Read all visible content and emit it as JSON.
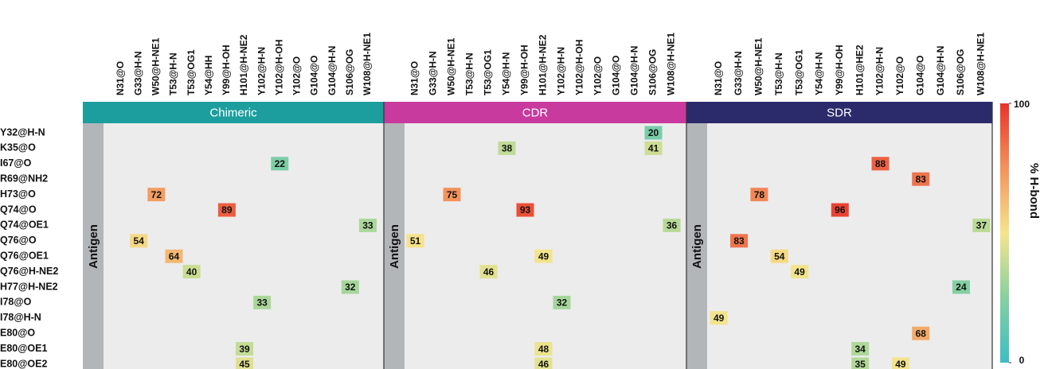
{
  "chart_data": {
    "type": "heatmap",
    "rows": [
      "Y32@H-N",
      "K35@O",
      "I67@O",
      "R69@NH2",
      "H73@O",
      "Q74@O",
      "Q74@OE1",
      "Q76@O",
      "Q76@OE1",
      "Q76@H-NE2",
      "H77@H-NE2",
      "I78@O",
      "I78@H-N",
      "E80@O",
      "E80@OE1",
      "E80@OE2"
    ],
    "row_group_label": "Antigen",
    "colorbar": {
      "label": "% H-bond",
      "lim": [
        0,
        100
      ],
      "ticks": [
        0,
        100
      ]
    },
    "colorscale": [
      [
        0,
        "#3dbdc6"
      ],
      [
        25,
        "#86d0a0"
      ],
      [
        50,
        "#f5e58c"
      ],
      [
        75,
        "#f2935c"
      ],
      [
        100,
        "#e8332a"
      ]
    ],
    "panels": [
      {
        "title": "Chimeric",
        "color": "#1c9e9e",
        "columns": [
          "N31@O",
          "G33@H-N",
          "W50@H-NE1",
          "T53@H-N",
          "T53@OG1",
          "Y54@HH",
          "Y99@H-OH",
          "H101@H-NE2",
          "Y102@H-N",
          "Y102@H-OH",
          "Y102@O",
          "G104@O",
          "G104@H-N",
          "S106@OG",
          "W108@H-NE1"
        ],
        "values": [
          [
            null,
            null,
            null,
            null,
            null,
            null,
            null,
            null,
            null,
            null,
            null,
            null,
            null,
            null,
            null
          ],
          [
            null,
            null,
            null,
            null,
            null,
            null,
            null,
            null,
            null,
            null,
            null,
            null,
            null,
            null,
            null
          ],
          [
            null,
            null,
            null,
            null,
            null,
            null,
            null,
            null,
            null,
            22,
            null,
            null,
            null,
            null,
            null
          ],
          [
            null,
            null,
            null,
            null,
            null,
            null,
            null,
            null,
            null,
            null,
            null,
            null,
            null,
            null,
            null
          ],
          [
            null,
            null,
            72,
            null,
            null,
            null,
            null,
            null,
            null,
            null,
            null,
            null,
            null,
            null,
            null
          ],
          [
            null,
            null,
            null,
            null,
            null,
            null,
            89,
            null,
            null,
            null,
            null,
            null,
            null,
            null,
            null
          ],
          [
            null,
            null,
            null,
            null,
            null,
            null,
            null,
            null,
            null,
            null,
            null,
            null,
            null,
            null,
            33
          ],
          [
            null,
            54,
            null,
            null,
            null,
            null,
            null,
            null,
            null,
            null,
            null,
            null,
            null,
            null,
            null
          ],
          [
            null,
            null,
            null,
            64,
            null,
            null,
            null,
            null,
            null,
            null,
            null,
            null,
            null,
            null,
            null
          ],
          [
            null,
            null,
            null,
            null,
            40,
            null,
            null,
            null,
            null,
            null,
            null,
            null,
            null,
            null,
            null
          ],
          [
            null,
            null,
            null,
            null,
            null,
            null,
            null,
            null,
            null,
            null,
            null,
            null,
            null,
            32,
            null
          ],
          [
            null,
            null,
            null,
            null,
            null,
            null,
            null,
            null,
            33,
            null,
            null,
            null,
            null,
            null,
            null
          ],
          [
            null,
            null,
            null,
            null,
            null,
            null,
            null,
            null,
            null,
            null,
            null,
            null,
            null,
            null,
            null
          ],
          [
            null,
            null,
            null,
            null,
            null,
            null,
            null,
            null,
            null,
            null,
            null,
            null,
            null,
            null,
            null
          ],
          [
            null,
            null,
            null,
            null,
            null,
            null,
            null,
            39,
            null,
            null,
            null,
            null,
            null,
            null,
            null
          ],
          [
            null,
            null,
            null,
            null,
            null,
            null,
            null,
            45,
            null,
            null,
            null,
            null,
            null,
            null,
            null
          ]
        ]
      },
      {
        "title": "CDR",
        "color": "#c93a9e",
        "columns": [
          "N31@O",
          "G33@H-N",
          "W50@H-NE1",
          "T53@H-N",
          "T53@OG1",
          "Y54@H-N",
          "Y99@H-OH",
          "H101@H-NE2",
          "Y102@H-N",
          "Y102@H-OH",
          "Y102@O",
          "G104@O",
          "G104@H-N",
          "S106@OG",
          "W108@H-NE1"
        ],
        "values": [
          [
            null,
            null,
            null,
            null,
            null,
            null,
            null,
            null,
            null,
            null,
            null,
            null,
            null,
            20,
            null
          ],
          [
            null,
            null,
            null,
            null,
            null,
            38,
            null,
            null,
            null,
            null,
            null,
            null,
            null,
            41,
            null
          ],
          [
            null,
            null,
            null,
            null,
            null,
            null,
            null,
            null,
            null,
            null,
            null,
            null,
            null,
            null,
            null
          ],
          [
            null,
            null,
            null,
            null,
            null,
            null,
            null,
            null,
            null,
            null,
            null,
            null,
            null,
            null,
            null
          ],
          [
            null,
            null,
            75,
            null,
            null,
            null,
            null,
            null,
            null,
            null,
            null,
            null,
            null,
            null,
            null
          ],
          [
            null,
            null,
            null,
            null,
            null,
            null,
            93,
            null,
            null,
            null,
            null,
            null,
            null,
            null,
            null
          ],
          [
            null,
            null,
            null,
            null,
            null,
            null,
            null,
            null,
            null,
            null,
            null,
            null,
            null,
            null,
            36
          ],
          [
            51,
            null,
            null,
            null,
            null,
            null,
            null,
            null,
            null,
            null,
            null,
            null,
            null,
            null,
            null
          ],
          [
            null,
            null,
            null,
            null,
            null,
            null,
            null,
            49,
            null,
            null,
            null,
            null,
            null,
            null,
            null
          ],
          [
            null,
            null,
            null,
            null,
            46,
            null,
            null,
            null,
            null,
            null,
            null,
            null,
            null,
            null,
            null
          ],
          [
            null,
            null,
            null,
            null,
            null,
            null,
            null,
            null,
            null,
            null,
            null,
            null,
            null,
            null,
            null
          ],
          [
            null,
            null,
            null,
            null,
            null,
            null,
            null,
            null,
            32,
            null,
            null,
            null,
            null,
            null,
            null
          ],
          [
            null,
            null,
            null,
            null,
            null,
            null,
            null,
            null,
            null,
            null,
            null,
            null,
            null,
            null,
            null
          ],
          [
            null,
            null,
            null,
            null,
            null,
            null,
            null,
            null,
            null,
            null,
            null,
            null,
            null,
            null,
            null
          ],
          [
            null,
            null,
            null,
            null,
            null,
            null,
            null,
            48,
            null,
            null,
            null,
            null,
            null,
            null,
            null
          ],
          [
            null,
            null,
            null,
            null,
            null,
            null,
            null,
            46,
            null,
            null,
            null,
            null,
            null,
            null,
            null
          ]
        ]
      },
      {
        "title": "SDR",
        "color": "#2b2a6b",
        "columns": [
          "N31@O",
          "G33@H-N",
          "W50@H-NE1",
          "T53@H-N",
          "T53@OG1",
          "Y54@H-N",
          "Y99@H-OH",
          "H101@HE2",
          "Y102@H-N",
          "Y102@O",
          "G104@O",
          "G104@H-N",
          "S106@OG",
          "W108@H-NE1"
        ],
        "values": [
          [
            null,
            null,
            null,
            null,
            null,
            null,
            null,
            null,
            null,
            null,
            null,
            null,
            null,
            null
          ],
          [
            null,
            null,
            null,
            null,
            null,
            null,
            null,
            null,
            null,
            null,
            null,
            null,
            null,
            null
          ],
          [
            null,
            null,
            null,
            null,
            null,
            null,
            null,
            null,
            88,
            null,
            null,
            null,
            null,
            null
          ],
          [
            null,
            null,
            null,
            null,
            null,
            null,
            null,
            null,
            null,
            null,
            83,
            null,
            null,
            null
          ],
          [
            null,
            null,
            78,
            null,
            null,
            null,
            null,
            null,
            null,
            null,
            null,
            null,
            null,
            null
          ],
          [
            null,
            null,
            null,
            null,
            null,
            null,
            96,
            null,
            null,
            null,
            null,
            null,
            null,
            null
          ],
          [
            null,
            null,
            null,
            null,
            null,
            null,
            null,
            null,
            null,
            null,
            null,
            null,
            null,
            37
          ],
          [
            null,
            83,
            null,
            null,
            null,
            null,
            null,
            null,
            null,
            null,
            null,
            null,
            null,
            null
          ],
          [
            null,
            null,
            null,
            54,
            null,
            null,
            null,
            null,
            null,
            null,
            null,
            null,
            null,
            null
          ],
          [
            null,
            null,
            null,
            null,
            49,
            null,
            null,
            null,
            null,
            null,
            null,
            null,
            null,
            null
          ],
          [
            null,
            null,
            null,
            null,
            null,
            null,
            null,
            null,
            null,
            null,
            null,
            null,
            24,
            null
          ],
          [
            null,
            null,
            null,
            null,
            null,
            null,
            null,
            null,
            null,
            null,
            null,
            null,
            null,
            null
          ],
          [
            49,
            null,
            null,
            null,
            null,
            null,
            null,
            null,
            null,
            null,
            null,
            null,
            null,
            null
          ],
          [
            null,
            null,
            null,
            null,
            null,
            null,
            null,
            null,
            null,
            null,
            68,
            null,
            null,
            null
          ],
          [
            null,
            null,
            null,
            null,
            null,
            null,
            null,
            34,
            null,
            null,
            null,
            null,
            null,
            null
          ],
          [
            null,
            null,
            null,
            null,
            null,
            null,
            null,
            35,
            null,
            49,
            null,
            null,
            null,
            null
          ]
        ]
      }
    ]
  }
}
